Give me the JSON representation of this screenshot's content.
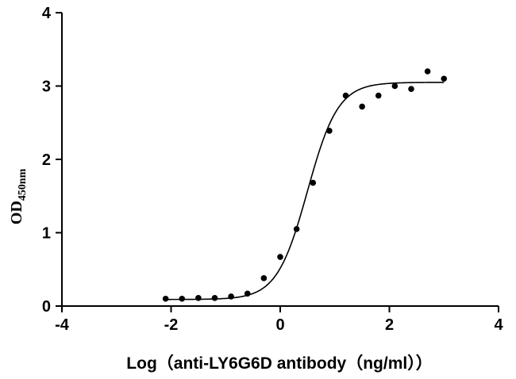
{
  "chart_data": {
    "type": "scatter",
    "title": "",
    "xlabel": "Log（anti-LY6G6D antibody（ng/ml））",
    "ylabel": {
      "main": "OD",
      "subscript": "450nm"
    },
    "xlim": [
      -4,
      4
    ],
    "ylim": [
      0,
      4
    ],
    "xticks": [
      "-4",
      "-2",
      "0",
      "2",
      "4"
    ],
    "yticks": [
      "0",
      "1",
      "2",
      "3",
      "4"
    ],
    "grid": false,
    "points": {
      "x": [
        -2.1,
        -1.8,
        -1.5,
        -1.2,
        -0.9,
        -0.6,
        -0.3,
        0.0,
        0.3,
        0.6,
        0.9,
        1.2,
        1.5,
        1.8,
        2.1,
        2.4,
        2.7,
        3.0
      ],
      "y": [
        0.1,
        0.1,
        0.11,
        0.11,
        0.13,
        0.17,
        0.38,
        0.67,
        1.05,
        1.68,
        2.39,
        2.87,
        2.72,
        2.87,
        3.0,
        2.96,
        3.2,
        3.1
      ]
    },
    "fit": {
      "model": "4PL",
      "bottom": 0.09,
      "top": 3.05,
      "logEC50": 0.5,
      "hill": 1.55,
      "xrange": [
        -2.1,
        3.0
      ]
    }
  }
}
